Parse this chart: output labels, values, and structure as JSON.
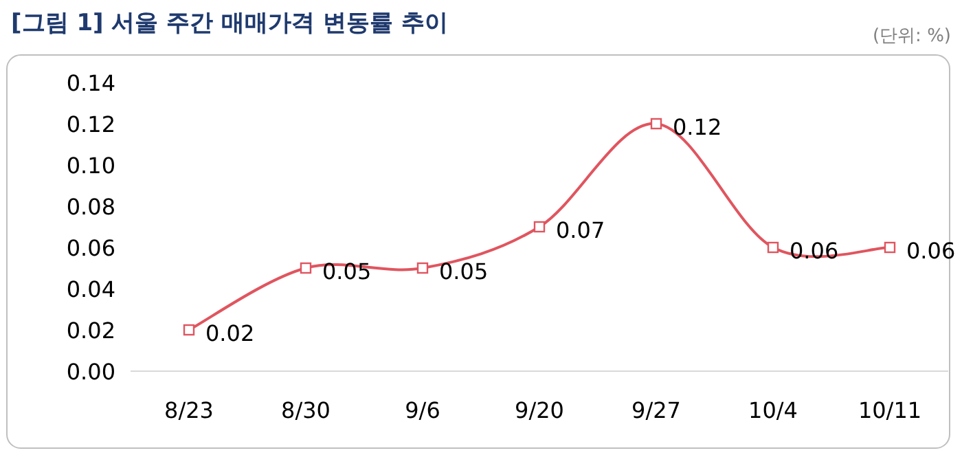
{
  "chart_data": {
    "type": "line",
    "title": "[그림 1] 서울 주간 매매가격 변동률 추이",
    "annotations": [
      "(단위: %)"
    ],
    "categories": [
      "8/23",
      "8/30",
      "9/6",
      "9/20",
      "9/27",
      "10/4",
      "10/11"
    ],
    "series": [
      {
        "color": "#e0555f",
        "values": [
          0.02,
          0.05,
          0.05,
          0.07,
          0.12,
          0.06,
          0.06
        ]
      }
    ],
    "ylim": [
      0,
      0.14
    ],
    "yticks": [
      {
        "value": 0,
        "label": "0.00"
      },
      0.02,
      0.04,
      0.06,
      0.08,
      {
        "value": 0.1,
        "label": "0.10"
      },
      0.12,
      0.14
    ],
    "data_labels": true,
    "marker": "square"
  }
}
